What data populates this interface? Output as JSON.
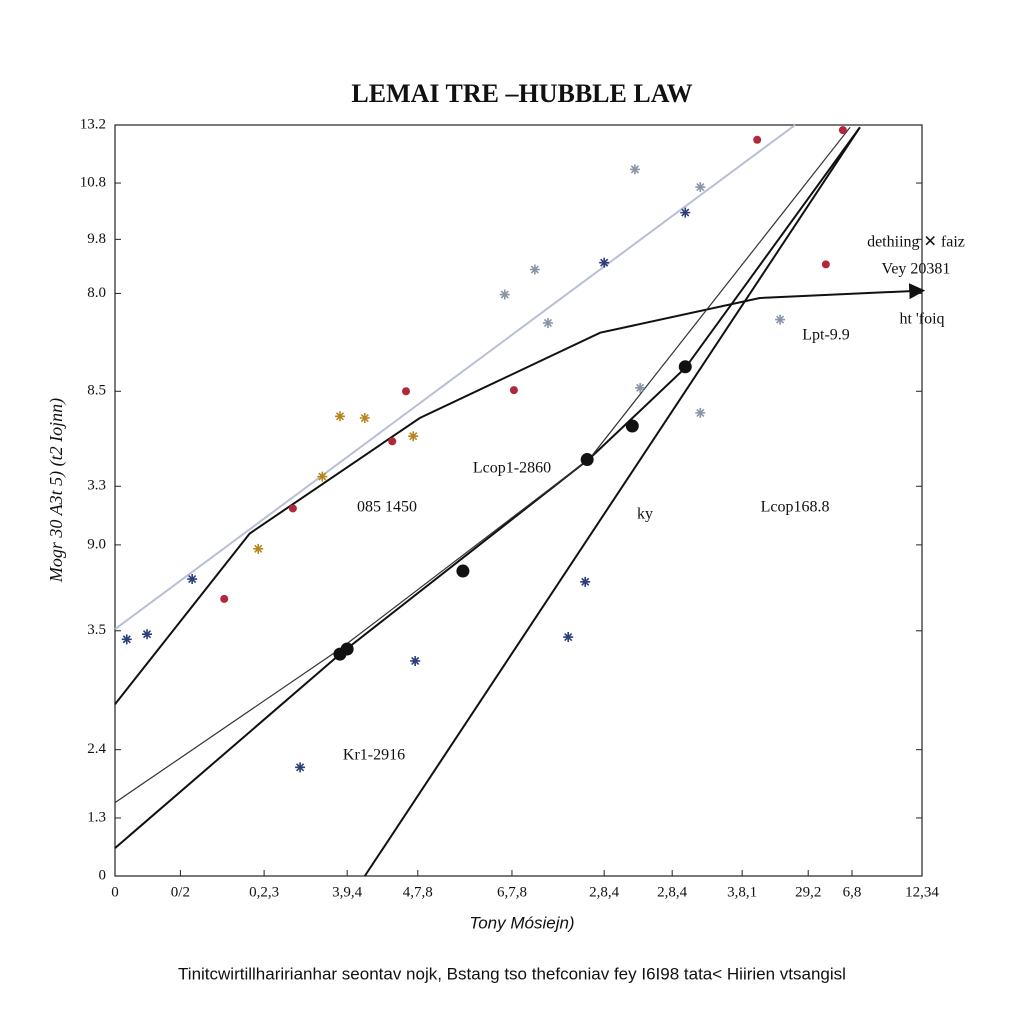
{
  "chart_data": [
    {
      "type": "line",
      "title": "LEMAI TRE –HUBBLE  LAW",
      "y_label": "Mogr 30 A3t 5) (t2 Iojnn)",
      "x_label": "Tony Mósiejn)",
      "caption": "Tinitcwirtillharirianhar seontav nojk, Bstang tso thefconiav fey I6I98 tata< Hiirien vtsangisl",
      "annotations": [
        "Lcop1-2860",
        "085 1450",
        "Lcop168.8",
        "Kr1-2916",
        "Lpt-9.9",
        "dethiing ✕ faiz",
        "Vey 20381",
        "ht 'foiq",
        "ky"
      ],
      "xlim": [
        0,
        12.34
      ],
      "ylim": [
        0,
        13.2
      ],
      "xticks": [
        0,
        {
          "value": 1.0,
          "label": "0/2"
        },
        {
          "value": 2.28,
          "label": "0,2,3"
        },
        {
          "value": 3.55,
          "label": "3,9,4"
        },
        {
          "value": 4.63,
          "label": "4,7,8"
        },
        {
          "value": 6.07,
          "label": "6,7,8"
        },
        {
          "value": 7.48,
          "label": "2,8,4"
        },
        {
          "value": 8.52,
          "label": "2,8,4"
        },
        {
          "value": 9.59,
          "label": "3,8,1"
        },
        {
          "value": 10.6,
          "label": "29,2"
        },
        {
          "value": 11.27,
          "label": "6,8"
        },
        {
          "value": 12.34,
          "label": "12,34"
        }
      ],
      "yticks": [
        0,
        {
          "value": 1.02,
          "label": "1.3"
        },
        {
          "value": 2.22,
          "label": "2.4"
        },
        {
          "value": 4.31,
          "label": "3.5"
        },
        {
          "value": 5.82,
          "label": "9.0"
        },
        {
          "value": 6.85,
          "label": "3.3"
        },
        {
          "value": 8.52,
          "label": "8.5"
        },
        {
          "value": 10.24,
          "label": "8.0"
        },
        {
          "value": 11.19,
          "label": "9.8"
        },
        {
          "value": 12.18,
          "label": "10.8"
        },
        13.2
      ],
      "series": [
        {
          "color": "#111111",
          "arrow": true,
          "x": [
            0,
            2.06,
            4.66,
            7.42,
            9.86,
            12.34
          ],
          "values": [
            3.02,
            6.02,
            8.05,
            9.55,
            10.16,
            10.29
          ]
        },
        {
          "color": "#111111",
          "x": [
            0,
            3.44,
            7.26,
            8.72,
            11.39
          ],
          "values": [
            0.49,
            3.9,
            7.34,
            8.93,
            13.16
          ]
        },
        {
          "color": "#111111",
          "x": [
            3.82,
            11.39
          ],
          "values": [
            0,
            13.16
          ]
        },
        {
          "color": "#333333",
          "x": [
            0,
            3.44,
            7.26,
            11.24
          ],
          "values": [
            1.29,
            3.99,
            7.34,
            13.16
          ]
        },
        {
          "color": "#b8bfd6",
          "x": [
            0,
            10.4
          ],
          "values": [
            4.34,
            13.2
          ]
        }
      ]
    },
    {
      "type": "scatter",
      "series": [
        {
          "color": "#2b3f7a",
          "marker": "star",
          "x": [
            0.18,
            0.49,
            1.18,
            2.83,
            4.59,
            6.93,
            7.48,
            8.72,
            7.19
          ],
          "values": [
            4.16,
            4.25,
            5.22,
            1.91,
            3.78,
            4.2,
            10.78,
            11.66,
            5.17
          ]
        },
        {
          "color": "#b0283a",
          "marker": "dot",
          "x": [
            1.67,
            2.72,
            6.1,
            4.24,
            9.82,
            10.87,
            11.13,
            4.45
          ],
          "values": [
            4.87,
            6.46,
            8.54,
            7.64,
            12.94,
            10.75,
            13.11,
            8.52
          ]
        },
        {
          "color": "#b8861e",
          "marker": "star",
          "x": [
            2.19,
            3.44,
            3.82,
            3.17,
            4.56
          ],
          "values": [
            5.75,
            8.08,
            8.05,
            7.02,
            7.73
          ]
        },
        {
          "color": "#8a93a8",
          "marker": "star",
          "x": [
            7.95,
            8.95,
            6.42,
            5.96,
            6.62,
            10.17,
            8.03,
            8.95
          ],
          "values": [
            12.42,
            12.11,
            10.66,
            10.22,
            9.72,
            9.78,
            8.58,
            8.14
          ]
        },
        {
          "color": "#111111",
          "marker": "big",
          "x": [
            3.44,
            3.55,
            7.22,
            8.72,
            5.32,
            7.91
          ],
          "values": [
            3.9,
            3.99,
            7.32,
            8.95,
            5.36,
            7.91
          ]
        }
      ]
    }
  ]
}
